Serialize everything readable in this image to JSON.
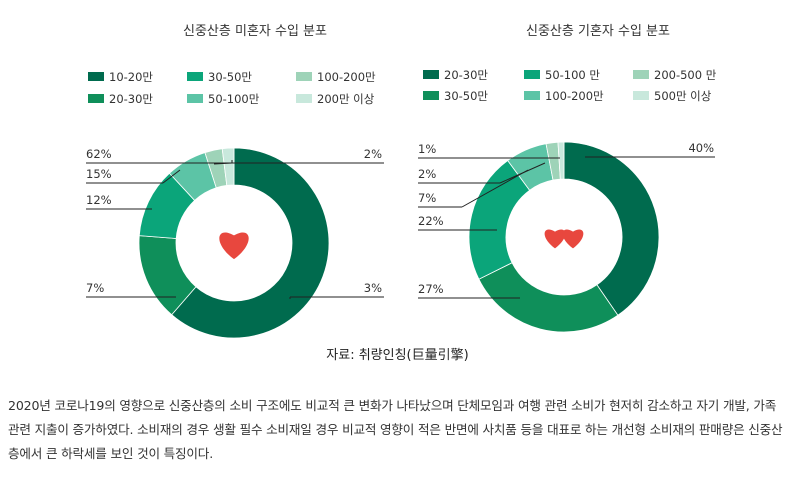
{
  "chart_data": [
    {
      "type": "pie",
      "variant": "donut",
      "title": "신중산층 미혼자 수입 분포",
      "legend_entries": [
        "10-20만",
        "30-50만",
        "100-200만",
        "20-30만",
        "50-100만",
        "200만 이상"
      ],
      "slices": [
        {
          "label": "10-20만",
          "value": 62,
          "value_label": "62%",
          "color": "#006b4e"
        },
        {
          "label": "20-30만",
          "value": 15,
          "value_label": "15%",
          "color": "#0f8f5a"
        },
        {
          "label": "30-50만",
          "value": 12,
          "value_label": "12%",
          "color": "#0ba57a"
        },
        {
          "label": "50-100만",
          "value": 7,
          "value_label": "7%",
          "color": "#5cc4a6"
        },
        {
          "label": "100-200만",
          "value": 3,
          "value_label": "3%",
          "color": "#9ed3b8"
        },
        {
          "label": "200만 이상",
          "value": 2,
          "value_label": "2%",
          "color": "#c8e8dc"
        }
      ],
      "center_icon": "heart-icon"
    },
    {
      "type": "pie",
      "variant": "donut",
      "title": "신중산층 기혼자 수입 분포",
      "legend_entries": [
        "20-30만",
        "50-100 만",
        "200-500 만",
        "30-50만",
        "100-200만",
        "500만 이상"
      ],
      "slices": [
        {
          "label": "20-30만",
          "value": 40,
          "value_label": "40%",
          "color": "#006b4e"
        },
        {
          "label": "30-50만",
          "value": 27,
          "value_label": "27%",
          "color": "#0f8f5a"
        },
        {
          "label": "50-100 만",
          "value": 22,
          "value_label": "22%",
          "color": "#0ba57a"
        },
        {
          "label": "100-200만",
          "value": 7,
          "value_label": "7%",
          "color": "#5cc4a6"
        },
        {
          "label": "200-500 만",
          "value": 2,
          "value_label": "2%",
          "color": "#9ed3b8"
        },
        {
          "label": "500만 이상",
          "value": 1,
          "value_label": "1%",
          "color": "#c8e8dc"
        }
      ],
      "center_icon": "two-hearts-icon"
    }
  ],
  "source": "자료: 취량인칭(巨量引擎)",
  "paragraph": "2020년 코로나19의 영향으로 신중산층의 소비 구조에도 비교적 큰 변화가 나타났으며 단체모임과 여행 관련 소비가 현저히 감소하고 자기 개발, 가족 관련 지출이 증가하였다. 소비재의 경우 생활 필수 소비재일 경우 비교적 영향이 적은 반면에 사치품 등을 대표로 하는 개선형 소비재의 판매량은 신중산층에서 큰 하락세를 보인 것이 특징이다.",
  "heart_color": "#e8473e"
}
